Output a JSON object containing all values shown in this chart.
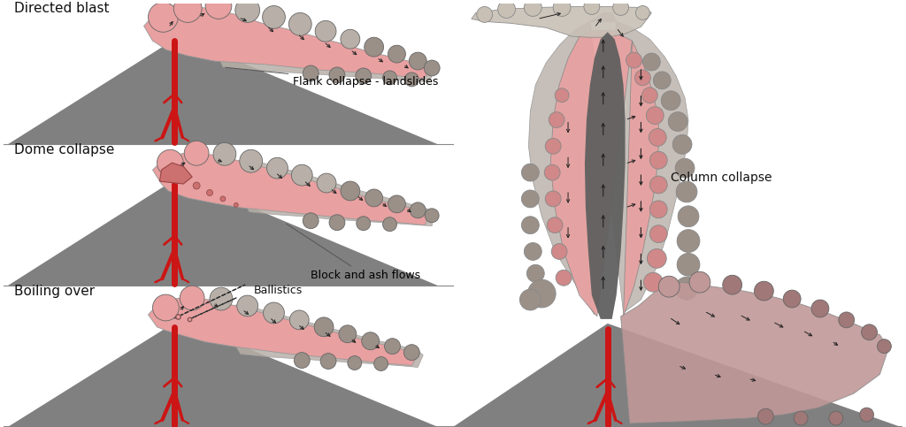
{
  "bg_color": "#ffffff",
  "volcano_color": "#808080",
  "volcano_dark": "#606060",
  "lava_color": "#cc1515",
  "pink_color": "#e8a0a0",
  "pink_dark": "#d08888",
  "gray_color": "#b8b0a8",
  "gray_dark": "#9a9088",
  "plume_color": "#c8c0b5",
  "plume_light": "#d8d0c8",
  "dark_col": "#5a5550",
  "pdc_color": "#c09898",
  "pdc_dark": "#a07878",
  "arrow_color": "#222222",
  "text_color": "#111111",
  "title_fontsize": 11,
  "label_fontsize": 9,
  "titles": [
    "Directed blast",
    "Dome collapse",
    "Boiling over",
    "Column collapse"
  ],
  "labels": [
    "Flank collapse - landslides",
    "Block and ash flows",
    "Ballistics",
    "Column collapse"
  ]
}
